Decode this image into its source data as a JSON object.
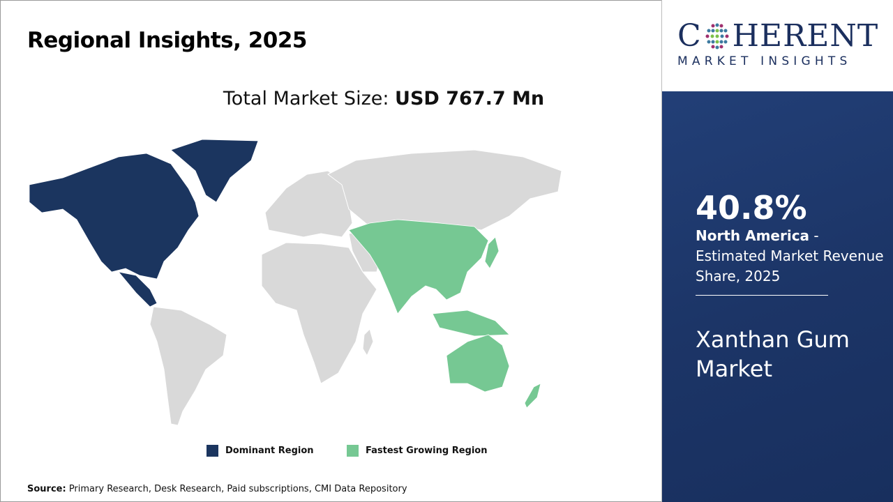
{
  "title": "Regional Insights, 2025",
  "market_size": {
    "label": "Total Market Size: ",
    "value": "USD 767.7 Mn"
  },
  "legend": [
    {
      "label": "Dominant Region",
      "color": "#1b355f"
    },
    {
      "label": "Fastest Growing Region",
      "color": "#76c893"
    }
  ],
  "map": {
    "dominant_region": "North America",
    "fastest_growing_region": "Asia Pacific",
    "other_color": "#d9d9d9"
  },
  "source": {
    "label": "Source:",
    "text": " Primary Research, Desk Research, Paid subscriptions, CMI Data Repository"
  },
  "logo": {
    "main_left": "C",
    "main_right": "HERENT",
    "sub": "MARKET INSIGHTS"
  },
  "side": {
    "percent": "40.8%",
    "region": "North America",
    "desc": " - Estimated Market Revenue Share, 2025",
    "market_name": "Xanthan Gum Market"
  }
}
